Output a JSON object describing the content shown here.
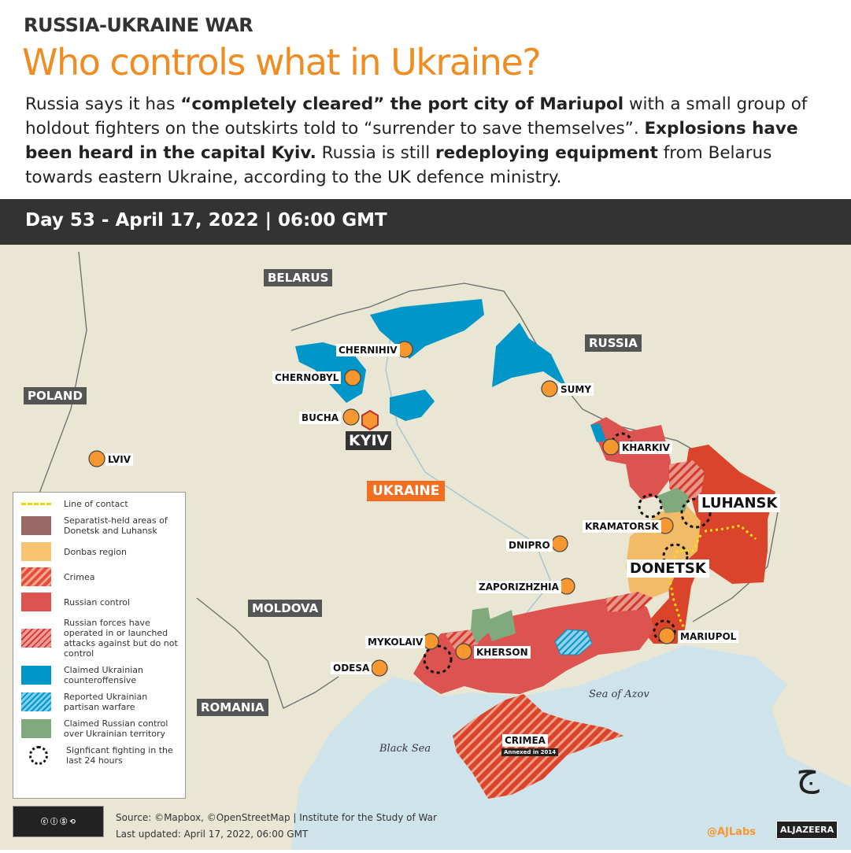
{
  "header": {
    "kicker": "RUSSIA-UKRAINE WAR",
    "title": "Who controls what in Ukraine?",
    "desc": [
      {
        "t": "Russia says it has ",
        "b": false
      },
      {
        "t": "“completely cleared” the port city of Mariupol",
        "b": true
      },
      {
        "t": " with a small group of holdout fighters on the outskirts told to “surrender to save themselves”. ",
        "b": false
      },
      {
        "t": "Explosions have been heard in the capital Kyiv.",
        "b": true
      },
      {
        "t": " Russia is still ",
        "b": false
      },
      {
        "t": "redeploying equipment",
        "b": true
      },
      {
        "t": " from Belarus towards eastern Ukraine, according to the UK defence ministry.",
        "b": false
      }
    ],
    "day": "Day 53 - April 17, 2022 | 06:00 GMT"
  },
  "map": {
    "countries": {
      "belarus": "BELARUS",
      "russia": "RUSSIA",
      "poland": "POLAND",
      "ukraine": "UKRAINE",
      "moldova": "MOLDOVA",
      "romania": "ROMANIA"
    },
    "capital": "KYIV",
    "regions": {
      "luhansk": "LUHANSK",
      "donetsk": "DONETSK",
      "crimea": "CRIMEA",
      "crimea_note": "Annexed in 2014"
    },
    "seas": {
      "azov": "Sea of Azov",
      "black": "Black Sea"
    },
    "cities": [
      "CHERNIHIV",
      "CHERNOBYL",
      "BUCHA",
      "SUMY",
      "KHARKIV",
      "KRAMATORSK",
      "DNIPRO",
      "ZAPORIZHZHIA",
      "MARIUPOL",
      "MYKOLAIV",
      "KHERSON",
      "ODESA",
      "LVIV"
    ],
    "colors": {
      "russian_control": "#dc5350",
      "separatist": "#d9442a",
      "donbas": "#f2bb67",
      "counteroffensive": "#0096c8",
      "claimed_russian": "#80a97e",
      "city": "#f7972f",
      "land": "#ece9d8",
      "sea": "#cfe3ea"
    }
  },
  "legend": [
    "Line of contact",
    "Separatist-held areas of Donetsk and Luhansk",
    "Donbas region",
    "Crimea",
    "Russian control",
    "Russian forces have operated in or launched attacks against but do not control",
    "Claimed Ukrainian counteroffensive",
    "Reported Ukrainian partisan warfare",
    "Claimed Russian control over Ukrainian territory",
    "Signficant fighting in the last 24 hours"
  ],
  "footer": {
    "license": "cc-by-nc-sa-icon",
    "source": "Source: ©Mapbox, ©OpenStreetMap  |  Institute for the Study of War",
    "updated": "Last updated: April 17, 2022, 06:00 GMT",
    "handle": "@AJLabs",
    "brand": "ALJAZEERA"
  }
}
